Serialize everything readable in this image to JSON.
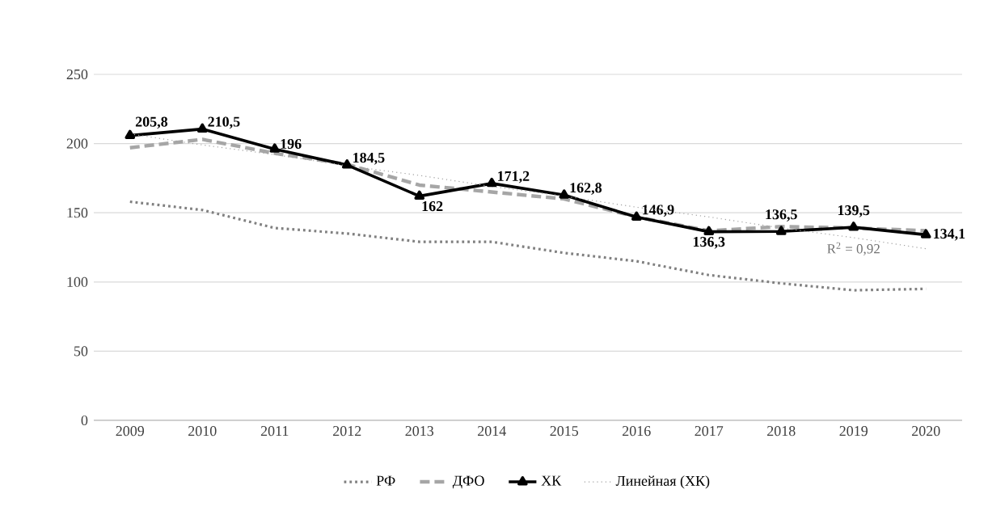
{
  "chart_data": {
    "type": "line",
    "categories": [
      "2009",
      "2010",
      "2011",
      "2012",
      "2013",
      "2014",
      "2015",
      "2016",
      "2017",
      "2018",
      "2019",
      "2020"
    ],
    "series": [
      {
        "name": "РФ",
        "color": "#808080",
        "line_style": "dotted",
        "marker": "none",
        "values": [
          158,
          152,
          139,
          135,
          129,
          129,
          121,
          115,
          105,
          99,
          94,
          95
        ]
      },
      {
        "name": "ДФО",
        "color": "#a6a6a6",
        "line_style": "dashed",
        "marker": "none",
        "values": [
          197,
          203,
          193,
          185,
          170,
          165,
          160,
          147,
          137,
          140,
          139,
          137
        ]
      },
      {
        "name": "ХК",
        "color": "#000000",
        "line_style": "solid",
        "marker": "triangle",
        "values": [
          205.8,
          210.5,
          196,
          184.5,
          162,
          171.2,
          162.8,
          146.9,
          136.3,
          136.5,
          139.5,
          134.1
        ],
        "value_labels": [
          "205,8",
          "210,5",
          "196",
          "184,5",
          "162",
          "171,2",
          "162,8",
          "146,9",
          "136,3",
          "136,5",
          "139,5",
          "134,1"
        ]
      },
      {
        "name": "Линейная (ХК)",
        "color": "#a0a0a0",
        "line_style": "dotted",
        "marker": "none",
        "values": [
          207,
          199,
          192,
          184,
          177,
          169,
          162,
          154,
          147,
          139,
          132,
          124
        ]
      }
    ],
    "annotations": [
      "R$^{2}$ = 0,92"
    ],
    "ylim": [
      0,
      250
    ],
    "yticks": [
      0,
      50,
      100,
      150,
      200,
      250
    ],
    "grid": "y",
    "legend": "bottom"
  }
}
